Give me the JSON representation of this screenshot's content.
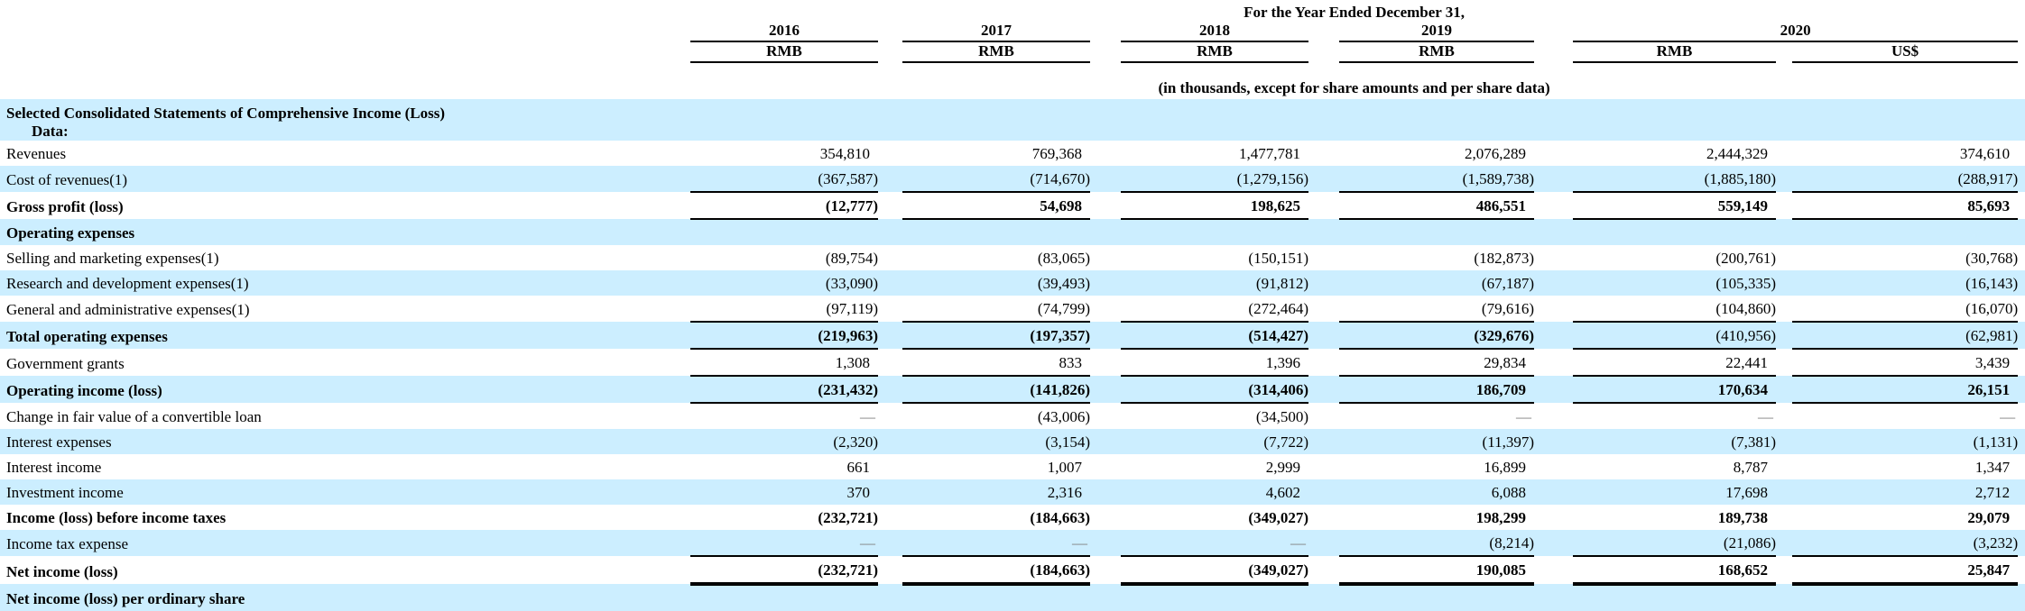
{
  "header": {
    "title": "For the Year Ended December 31,",
    "subtitle": "(in thousands, except for share amounts and per share data)",
    "years": [
      "2016",
      "2017",
      "2018",
      "2019",
      "2020"
    ],
    "units": [
      "RMB",
      "RMB",
      "RMB",
      "RMB",
      "RMB",
      "US$"
    ]
  },
  "section": {
    "line1": "Selected Consolidated Statements of Comprehensive Income (Loss)",
    "line2": "Data:"
  },
  "colors": {
    "row_highlight": "#cceeff",
    "rule": "#000000",
    "dash": "#7f7f7f"
  },
  "table": {
    "rows": [
      {
        "label": "Revenues",
        "values": [
          "354,810",
          "769,368",
          "1,477,781",
          "2,076,289",
          "2,444,329",
          "374,610"
        ],
        "bold": false,
        "shaded": false,
        "border": "none"
      },
      {
        "label": "Cost of revenues(1)",
        "values": [
          "(367,587)",
          "(714,670)",
          "(1,279,156)",
          "(1,589,738)",
          "(1,885,180)",
          "(288,917)"
        ],
        "bold": false,
        "shaded": true,
        "border": "thin"
      },
      {
        "label": "Gross profit (loss)",
        "values": [
          "(12,777)",
          "54,698",
          "198,625",
          "486,551",
          "559,149",
          "85,693"
        ],
        "bold": true,
        "shaded": false,
        "border": "thin"
      },
      {
        "label": "Operating expenses",
        "values": [
          "",
          "",
          "",
          "",
          "",
          ""
        ],
        "bold": true,
        "shaded": true,
        "border": "none"
      },
      {
        "label": "Selling and marketing expenses(1)",
        "values": [
          "(89,754)",
          "(83,065)",
          "(150,151)",
          "(182,873)",
          "(200,761)",
          "(30,768)"
        ],
        "bold": false,
        "shaded": false,
        "border": "none"
      },
      {
        "label": "Research and development expenses(1)",
        "values": [
          "(33,090)",
          "(39,493)",
          "(91,812)",
          "(67,187)",
          "(105,335)",
          "(16,143)"
        ],
        "bold": false,
        "shaded": true,
        "border": "none"
      },
      {
        "label": "General and administrative expenses(1)",
        "values": [
          "(97,119)",
          "(74,799)",
          "(272,464)",
          "(79,616)",
          "(104,860)",
          "(16,070)"
        ],
        "bold": false,
        "shaded": false,
        "border": "thin"
      },
      {
        "label": "Total operating expenses",
        "values": [
          "(219,963)",
          "(197,357)",
          "(514,427)",
          "(329,676)",
          "(410,956)",
          "(62,981)"
        ],
        "bold": true,
        "shaded": true,
        "border": "thin",
        "regular_value_indices": [
          4,
          5
        ]
      },
      {
        "label": "Government grants",
        "values": [
          "1,308",
          "833",
          "1,396",
          "29,834",
          "22,441",
          "3,439"
        ],
        "bold": false,
        "shaded": false,
        "border": "thin"
      },
      {
        "label": "Operating income (loss)",
        "values": [
          "(231,432)",
          "(141,826)",
          "(314,406)",
          "186,709",
          "170,634",
          "26,151"
        ],
        "bold": true,
        "shaded": true,
        "border": "thin"
      },
      {
        "label": "Change in fair value of a convertible loan",
        "values": [
          "—",
          "(43,006)",
          "(34,500)",
          "—",
          "—",
          "—"
        ],
        "bold": false,
        "shaded": false,
        "border": "none"
      },
      {
        "label": "Interest expenses",
        "values": [
          "(2,320)",
          "(3,154)",
          "(7,722)",
          "(11,397)",
          "(7,381)",
          "(1,131)"
        ],
        "bold": false,
        "shaded": true,
        "border": "none"
      },
      {
        "label": "Interest income",
        "values": [
          "661",
          "1,007",
          "2,999",
          "16,899",
          "8,787",
          "1,347"
        ],
        "bold": false,
        "shaded": false,
        "border": "none"
      },
      {
        "label": "Investment income",
        "values": [
          "370",
          "2,316",
          "4,602",
          "6,088",
          "17,698",
          "2,712"
        ],
        "bold": false,
        "shaded": true,
        "border": "none"
      },
      {
        "label": "Income (loss) before income taxes",
        "values": [
          "(232,721)",
          "(184,663)",
          "(349,027)",
          "198,299",
          "189,738",
          "29,079"
        ],
        "bold": true,
        "shaded": false,
        "border": "none"
      },
      {
        "label": "Income tax expense",
        "values": [
          "—",
          "—",
          "—",
          "(8,214)",
          "(21,086)",
          "(3,232)"
        ],
        "bold": false,
        "shaded": true,
        "border": "thin"
      },
      {
        "label": "Net income (loss)",
        "values": [
          "(232,721)",
          "(184,663)",
          "(349,027)",
          "190,085",
          "168,652",
          "25,847"
        ],
        "bold": true,
        "shaded": false,
        "border": "thick"
      },
      {
        "label": "Net income (loss) per ordinary share",
        "values": [
          "",
          "",
          "",
          "",
          "",
          ""
        ],
        "bold": true,
        "shaded": true,
        "border": "none"
      }
    ]
  }
}
